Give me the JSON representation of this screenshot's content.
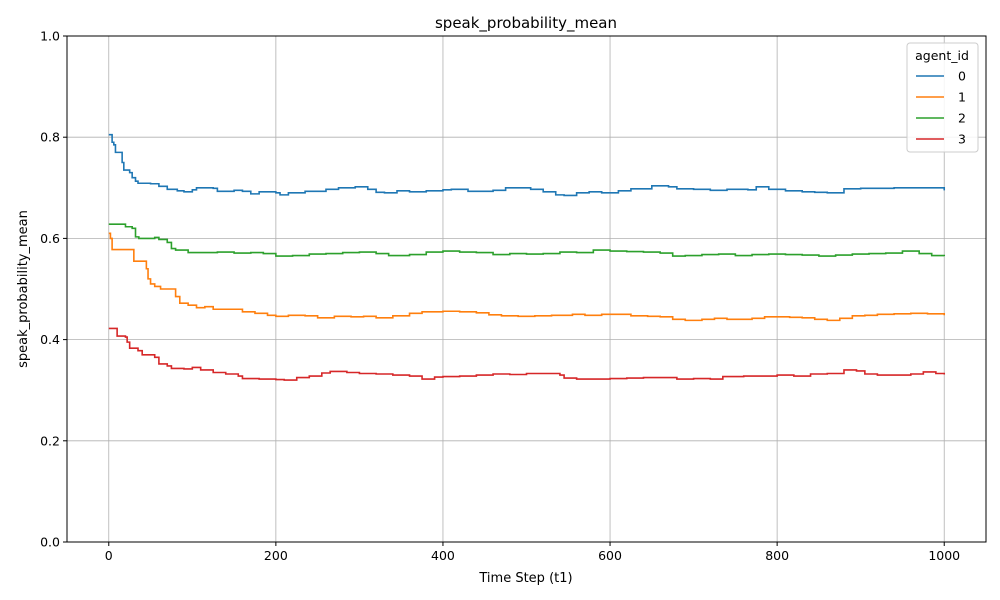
{
  "chart_data": {
    "type": "line",
    "title": "speak_probability_mean",
    "xlabel": "Time Step (t1)",
    "ylabel": "speak_probability_mean",
    "xlim": [
      -50,
      1050
    ],
    "ylim": [
      0.0,
      1.0
    ],
    "xticks": [
      0,
      200,
      400,
      600,
      800,
      1000
    ],
    "yticks": [
      0.0,
      0.2,
      0.4,
      0.6,
      0.8,
      1.0
    ],
    "xtick_labels": [
      "0",
      "200",
      "400",
      "600",
      "800",
      "1000"
    ],
    "ytick_labels": [
      "0.0",
      "0.2",
      "0.4",
      "0.6",
      "0.8",
      "1.0"
    ],
    "grid": true,
    "legend": {
      "title": "agent_id",
      "placement": "top-right"
    },
    "series": [
      {
        "name": "0",
        "color": "#1f77b4",
        "points": [
          [
            0,
            0.805
          ],
          [
            3,
            0.805
          ],
          [
            4,
            0.79
          ],
          [
            6,
            0.785
          ],
          [
            8,
            0.77
          ],
          [
            14,
            0.77
          ],
          [
            16,
            0.75
          ],
          [
            18,
            0.735
          ],
          [
            25,
            0.73
          ],
          [
            28,
            0.72
          ],
          [
            32,
            0.713
          ],
          [
            35,
            0.709
          ],
          [
            50,
            0.708
          ],
          [
            60,
            0.703
          ],
          [
            70,
            0.697
          ],
          [
            82,
            0.694
          ],
          [
            90,
            0.692
          ],
          [
            100,
            0.696
          ],
          [
            105,
            0.7
          ],
          [
            125,
            0.699
          ],
          [
            130,
            0.693
          ],
          [
            150,
            0.695
          ],
          [
            160,
            0.693
          ],
          [
            170,
            0.688
          ],
          [
            180,
            0.692
          ],
          [
            200,
            0.69
          ],
          [
            205,
            0.686
          ],
          [
            215,
            0.69
          ],
          [
            235,
            0.693
          ],
          [
            260,
            0.697
          ],
          [
            275,
            0.7
          ],
          [
            295,
            0.702
          ],
          [
            310,
            0.697
          ],
          [
            320,
            0.691
          ],
          [
            330,
            0.69
          ],
          [
            345,
            0.694
          ],
          [
            360,
            0.692
          ],
          [
            380,
            0.694
          ],
          [
            400,
            0.696
          ],
          [
            410,
            0.697
          ],
          [
            430,
            0.693
          ],
          [
            460,
            0.695
          ],
          [
            475,
            0.7
          ],
          [
            490,
            0.7
          ],
          [
            505,
            0.697
          ],
          [
            520,
            0.692
          ],
          [
            535,
            0.686
          ],
          [
            545,
            0.685
          ],
          [
            560,
            0.69
          ],
          [
            575,
            0.692
          ],
          [
            590,
            0.69
          ],
          [
            610,
            0.694
          ],
          [
            625,
            0.698
          ],
          [
            650,
            0.704
          ],
          [
            670,
            0.702
          ],
          [
            680,
            0.698
          ],
          [
            700,
            0.697
          ],
          [
            720,
            0.695
          ],
          [
            740,
            0.697
          ],
          [
            765,
            0.696
          ],
          [
            775,
            0.702
          ],
          [
            790,
            0.697
          ],
          [
            810,
            0.694
          ],
          [
            830,
            0.692
          ],
          [
            845,
            0.691
          ],
          [
            860,
            0.69
          ],
          [
            880,
            0.698
          ],
          [
            900,
            0.699
          ],
          [
            920,
            0.699
          ],
          [
            940,
            0.7
          ],
          [
            960,
            0.7
          ],
          [
            980,
            0.7
          ],
          [
            1000,
            0.695
          ]
        ]
      },
      {
        "name": "1",
        "color": "#ff7f0e",
        "points": [
          [
            0,
            0.61
          ],
          [
            2,
            0.6
          ],
          [
            4,
            0.578
          ],
          [
            25,
            0.578
          ],
          [
            30,
            0.555
          ],
          [
            42,
            0.555
          ],
          [
            45,
            0.54
          ],
          [
            47,
            0.52
          ],
          [
            50,
            0.51
          ],
          [
            55,
            0.505
          ],
          [
            62,
            0.5
          ],
          [
            75,
            0.5
          ],
          [
            80,
            0.485
          ],
          [
            85,
            0.472
          ],
          [
            95,
            0.468
          ],
          [
            105,
            0.463
          ],
          [
            115,
            0.465
          ],
          [
            125,
            0.46
          ],
          [
            150,
            0.46
          ],
          [
            160,
            0.455
          ],
          [
            175,
            0.452
          ],
          [
            190,
            0.448
          ],
          [
            200,
            0.446
          ],
          [
            215,
            0.448
          ],
          [
            235,
            0.447
          ],
          [
            250,
            0.443
          ],
          [
            270,
            0.446
          ],
          [
            290,
            0.445
          ],
          [
            305,
            0.446
          ],
          [
            320,
            0.443
          ],
          [
            340,
            0.447
          ],
          [
            360,
            0.452
          ],
          [
            375,
            0.455
          ],
          [
            400,
            0.456
          ],
          [
            420,
            0.455
          ],
          [
            440,
            0.453
          ],
          [
            455,
            0.449
          ],
          [
            470,
            0.447
          ],
          [
            490,
            0.446
          ],
          [
            510,
            0.447
          ],
          [
            530,
            0.448
          ],
          [
            555,
            0.45
          ],
          [
            570,
            0.448
          ],
          [
            590,
            0.45
          ],
          [
            605,
            0.45
          ],
          [
            625,
            0.447
          ],
          [
            645,
            0.446
          ],
          [
            660,
            0.445
          ],
          [
            675,
            0.44
          ],
          [
            690,
            0.438
          ],
          [
            710,
            0.44
          ],
          [
            725,
            0.442
          ],
          [
            740,
            0.44
          ],
          [
            755,
            0.44
          ],
          [
            770,
            0.442
          ],
          [
            785,
            0.445
          ],
          [
            800,
            0.445
          ],
          [
            815,
            0.444
          ],
          [
            830,
            0.443
          ],
          [
            845,
            0.44
          ],
          [
            860,
            0.438
          ],
          [
            875,
            0.442
          ],
          [
            890,
            0.447
          ],
          [
            905,
            0.448
          ],
          [
            920,
            0.45
          ],
          [
            940,
            0.451
          ],
          [
            960,
            0.452
          ],
          [
            980,
            0.451
          ],
          [
            1000,
            0.448
          ]
        ]
      },
      {
        "name": "2",
        "color": "#2ca02c",
        "points": [
          [
            0,
            0.628
          ],
          [
            18,
            0.628
          ],
          [
            20,
            0.623
          ],
          [
            28,
            0.62
          ],
          [
            32,
            0.603
          ],
          [
            36,
            0.6
          ],
          [
            55,
            0.602
          ],
          [
            60,
            0.598
          ],
          [
            70,
            0.592
          ],
          [
            75,
            0.58
          ],
          [
            80,
            0.577
          ],
          [
            95,
            0.572
          ],
          [
            110,
            0.572
          ],
          [
            130,
            0.573
          ],
          [
            150,
            0.571
          ],
          [
            170,
            0.572
          ],
          [
            185,
            0.57
          ],
          [
            200,
            0.565
          ],
          [
            220,
            0.566
          ],
          [
            240,
            0.569
          ],
          [
            260,
            0.57
          ],
          [
            280,
            0.572
          ],
          [
            300,
            0.573
          ],
          [
            320,
            0.57
          ],
          [
            335,
            0.566
          ],
          [
            360,
            0.568
          ],
          [
            380,
            0.573
          ],
          [
            400,
            0.575
          ],
          [
            420,
            0.573
          ],
          [
            440,
            0.572
          ],
          [
            460,
            0.568
          ],
          [
            480,
            0.57
          ],
          [
            500,
            0.569
          ],
          [
            520,
            0.57
          ],
          [
            540,
            0.573
          ],
          [
            560,
            0.572
          ],
          [
            580,
            0.577
          ],
          [
            600,
            0.575
          ],
          [
            620,
            0.574
          ],
          [
            640,
            0.573
          ],
          [
            660,
            0.571
          ],
          [
            675,
            0.565
          ],
          [
            690,
            0.566
          ],
          [
            710,
            0.568
          ],
          [
            730,
            0.569
          ],
          [
            750,
            0.566
          ],
          [
            770,
            0.568
          ],
          [
            790,
            0.569
          ],
          [
            810,
            0.568
          ],
          [
            830,
            0.567
          ],
          [
            850,
            0.565
          ],
          [
            870,
            0.567
          ],
          [
            890,
            0.569
          ],
          [
            910,
            0.57
          ],
          [
            930,
            0.571
          ],
          [
            950,
            0.575
          ],
          [
            970,
            0.57
          ],
          [
            985,
            0.566
          ],
          [
            1000,
            0.565
          ]
        ]
      },
      {
        "name": "3",
        "color": "#d62728",
        "points": [
          [
            0,
            0.422
          ],
          [
            8,
            0.422
          ],
          [
            10,
            0.407
          ],
          [
            20,
            0.405
          ],
          [
            22,
            0.395
          ],
          [
            25,
            0.383
          ],
          [
            35,
            0.378
          ],
          [
            40,
            0.37
          ],
          [
            55,
            0.365
          ],
          [
            60,
            0.352
          ],
          [
            70,
            0.348
          ],
          [
            75,
            0.343
          ],
          [
            90,
            0.342
          ],
          [
            100,
            0.345
          ],
          [
            110,
            0.34
          ],
          [
            125,
            0.335
          ],
          [
            140,
            0.332
          ],
          [
            155,
            0.328
          ],
          [
            160,
            0.323
          ],
          [
            180,
            0.322
          ],
          [
            200,
            0.321
          ],
          [
            210,
            0.32
          ],
          [
            225,
            0.325
          ],
          [
            240,
            0.328
          ],
          [
            255,
            0.334
          ],
          [
            265,
            0.337
          ],
          [
            285,
            0.335
          ],
          [
            300,
            0.333
          ],
          [
            320,
            0.332
          ],
          [
            340,
            0.33
          ],
          [
            360,
            0.328
          ],
          [
            375,
            0.322
          ],
          [
            390,
            0.326
          ],
          [
            400,
            0.327
          ],
          [
            420,
            0.328
          ],
          [
            440,
            0.33
          ],
          [
            460,
            0.332
          ],
          [
            480,
            0.331
          ],
          [
            500,
            0.333
          ],
          [
            520,
            0.333
          ],
          [
            540,
            0.33
          ],
          [
            545,
            0.324
          ],
          [
            560,
            0.322
          ],
          [
            580,
            0.322
          ],
          [
            600,
            0.323
          ],
          [
            620,
            0.324
          ],
          [
            640,
            0.325
          ],
          [
            660,
            0.325
          ],
          [
            680,
            0.322
          ],
          [
            700,
            0.323
          ],
          [
            720,
            0.322
          ],
          [
            735,
            0.327
          ],
          [
            760,
            0.328
          ],
          [
            780,
            0.328
          ],
          [
            800,
            0.33
          ],
          [
            820,
            0.328
          ],
          [
            840,
            0.332
          ],
          [
            860,
            0.333
          ],
          [
            880,
            0.34
          ],
          [
            895,
            0.338
          ],
          [
            905,
            0.332
          ],
          [
            920,
            0.33
          ],
          [
            940,
            0.33
          ],
          [
            960,
            0.332
          ],
          [
            975,
            0.336
          ],
          [
            990,
            0.333
          ],
          [
            1000,
            0.331
          ]
        ]
      }
    ]
  }
}
